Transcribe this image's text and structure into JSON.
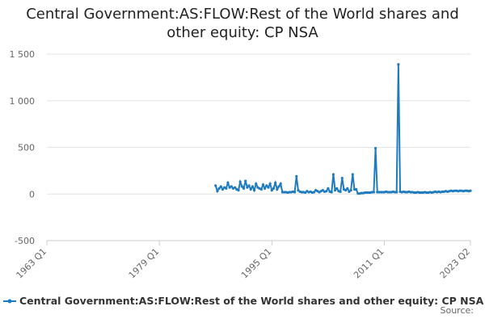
{
  "chart_data": {
    "type": "line",
    "title": "Central Government:AS:FLOW:Rest of the World shares and other equity: CP NSA",
    "source": "Source:",
    "categories": [
      "1963 Q1",
      null,
      null,
      null,
      null,
      null,
      null,
      null,
      null,
      null,
      null,
      null,
      null,
      null,
      null,
      null,
      null,
      null,
      null,
      null,
      null,
      null,
      null,
      null,
      null,
      null,
      null,
      null,
      null,
      null,
      null,
      null,
      null,
      null,
      null,
      null,
      null,
      null,
      null,
      null,
      null,
      null,
      null,
      null,
      null,
      null,
      null,
      null,
      null,
      null,
      null,
      null,
      null,
      null,
      null,
      null,
      null,
      null,
      null,
      null,
      null,
      null,
      null,
      null,
      "1979 Q1",
      null,
      null,
      null,
      null,
      null,
      null,
      null,
      null,
      null,
      null,
      null,
      null,
      null,
      null,
      null,
      null,
      null,
      null,
      null,
      null,
      null,
      null,
      null,
      null,
      null,
      null,
      null,
      null,
      null,
      null,
      null,
      null,
      null,
      null,
      null,
      null,
      null,
      null,
      null,
      null,
      null,
      null,
      null,
      null,
      null,
      null,
      null,
      null,
      null,
      null,
      null,
      null,
      null,
      null,
      null,
      null,
      null,
      null,
      null,
      null,
      null,
      null,
      null,
      "1995 Q1",
      null,
      null,
      null,
      null,
      null,
      null,
      null,
      null,
      null,
      null,
      null,
      null,
      null,
      null,
      null,
      null,
      null,
      null,
      null,
      null,
      null,
      null,
      null,
      null,
      null,
      null,
      null,
      null,
      null,
      null,
      null,
      null,
      null,
      null,
      null,
      null,
      null,
      null,
      null,
      null,
      null,
      null,
      null,
      null,
      null,
      null,
      null,
      null,
      null,
      null,
      null,
      null,
      null,
      null,
      null,
      null,
      null,
      null,
      null,
      null,
      null,
      null,
      null,
      "2011 Q1",
      null,
      null,
      null,
      null,
      null,
      null,
      null,
      null,
      null,
      null,
      null,
      null,
      null,
      null,
      null,
      null,
      null,
      null,
      null,
      null,
      null,
      null,
      null,
      null,
      null,
      null,
      null,
      null,
      null,
      null,
      null,
      null,
      null,
      null,
      null,
      null,
      null,
      null,
      null,
      null,
      null,
      null,
      null,
      null,
      null,
      null,
      null,
      null,
      "2023 Q2"
    ],
    "series": [
      {
        "name": "Central Government:AS:FLOW:Rest of the World shares and other equity: CP NSA",
        "color": "#1f7bbf",
        "values": [
          null,
          null,
          null,
          null,
          null,
          null,
          null,
          null,
          null,
          null,
          null,
          null,
          null,
          null,
          null,
          null,
          null,
          null,
          null,
          null,
          null,
          null,
          null,
          null,
          null,
          null,
          null,
          null,
          null,
          null,
          null,
          null,
          null,
          null,
          null,
          null,
          null,
          null,
          null,
          null,
          null,
          null,
          null,
          null,
          null,
          null,
          null,
          null,
          null,
          null,
          null,
          null,
          null,
          null,
          null,
          null,
          null,
          null,
          null,
          null,
          null,
          null,
          null,
          null,
          null,
          null,
          null,
          null,
          null,
          null,
          null,
          null,
          null,
          null,
          null,
          null,
          null,
          null,
          null,
          null,
          null,
          null,
          null,
          null,
          null,
          null,
          null,
          null,
          null,
          null,
          null,
          null,
          null,
          null,
          null,
          null,
          90,
          30,
          60,
          80,
          50,
          70,
          60,
          120,
          70,
          80,
          60,
          70,
          50,
          40,
          130,
          80,
          60,
          140,
          70,
          90,
          50,
          80,
          40,
          110,
          70,
          60,
          50,
          100,
          60,
          90,
          70,
          110,
          40,
          60,
          120,
          50,
          80,
          110,
          20,
          20,
          20,
          15,
          20,
          20,
          25,
          20,
          190,
          40,
          25,
          20,
          20,
          15,
          30,
          20,
          25,
          15,
          20,
          40,
          30,
          20,
          30,
          40,
          25,
          30,
          60,
          25,
          20,
          210,
          40,
          60,
          30,
          25,
          170,
          50,
          40,
          60,
          25,
          40,
          210,
          50,
          50,
          5,
          5,
          10,
          10,
          15,
          15,
          15,
          15,
          20,
          20,
          490,
          20,
          20,
          20,
          20,
          20,
          25,
          20,
          20,
          20,
          25,
          20,
          20,
          1390,
          25,
          20,
          25,
          20,
          20,
          25,
          20,
          20,
          15,
          15,
          20,
          15,
          15,
          15,
          20,
          15,
          15,
          20,
          15,
          20,
          25,
          20,
          25,
          20,
          25,
          25,
          30,
          25,
          30,
          35,
          30,
          35,
          35,
          30,
          35,
          35,
          30,
          35,
          35,
          30,
          35
        ]
      }
    ],
    "ylim": [
      -500,
      1500
    ],
    "yticks": [
      -500,
      0,
      500,
      {
        "value": 1000,
        "label": "1 000"
      },
      {
        "value": 1500,
        "label": "1 500"
      }
    ],
    "grid": true
  }
}
